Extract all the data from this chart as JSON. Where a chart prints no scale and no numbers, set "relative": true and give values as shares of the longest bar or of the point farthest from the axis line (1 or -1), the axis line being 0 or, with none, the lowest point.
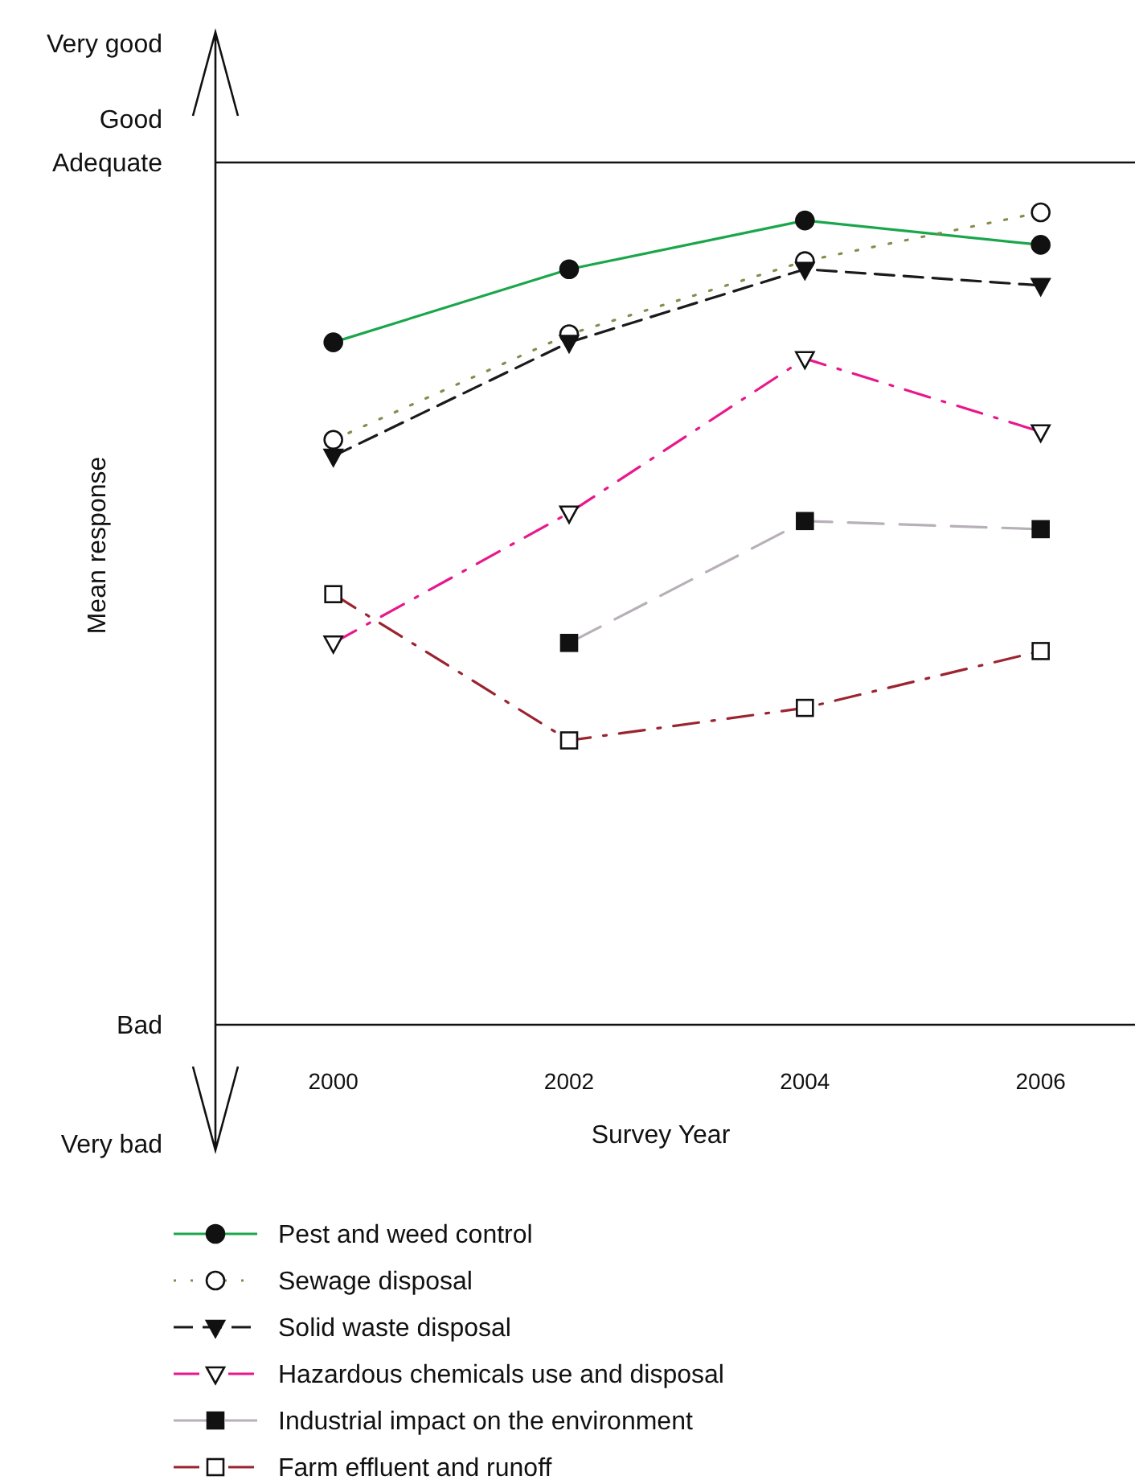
{
  "chart_data": {
    "type": "line",
    "xlabel": "Survey Year",
    "ylabel": "Mean response",
    "x": [
      2000,
      2002,
      2004,
      2006
    ],
    "xlim": [
      1999,
      2006.8
    ],
    "xticks": [
      2000,
      2002,
      2004,
      2006
    ],
    "relative": true,
    "annotations": [
      "Very good",
      "Good",
      "Adequate",
      "Bad",
      "Very bad"
    ],
    "legend": "bottom",
    "series": [
      {
        "name": "Pest and weed control",
        "color": "#1aa64a",
        "line_style": "solid",
        "marker": "circle",
        "values": [
          0.84,
          0.93,
          0.99,
          0.96
        ]
      },
      {
        "name": "Sewage disposal",
        "color": "#8a8a50",
        "line_style": "dotted",
        "marker": "circle-open",
        "values": [
          0.72,
          0.85,
          0.94,
          1
        ]
      },
      {
        "name": "Solid waste disposal",
        "color": "#1a1a1a",
        "line_style": "dashed",
        "marker": "triangle-down",
        "values": [
          0.7,
          0.84,
          0.93,
          0.91
        ]
      },
      {
        "name": "Hazardous chemicals use and disposal",
        "color": "#e8188c",
        "line_style": "dashdot",
        "marker": "triangle-down-open",
        "values": [
          0.47,
          0.63,
          0.82,
          0.73
        ]
      },
      {
        "name": "Industrial impact on the environment",
        "color": "#b8b0b8",
        "line_style": "longdash",
        "marker": "square",
        "values": [
          null,
          0.47,
          0.62,
          0.61
        ]
      },
      {
        "name": "Farm effluent and runoff",
        "color": "#9b2430",
        "line_style": "dashdot",
        "marker": "square-open",
        "values": [
          0.53,
          0.35,
          0.39,
          0.46
        ]
      }
    ]
  }
}
